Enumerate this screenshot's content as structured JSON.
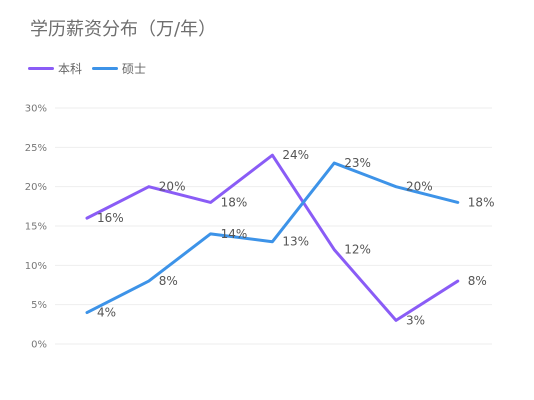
{
  "colors": {
    "undergraduate": "#8a5cf6",
    "master": "#3d93e8",
    "title_text": "#6e6e6e",
    "axis_text": "#777777",
    "label_text": "#555555",
    "grid": "#eeeeee"
  },
  "chart_data": {
    "type": "line",
    "title": "学历薪资分布（万/年）",
    "xlabel": "",
    "ylabel": "",
    "categories": [
      "",
      "",
      "",
      "",
      "",
      "",
      ""
    ],
    "ylim": [
      0,
      30
    ],
    "y_ticks": [
      0,
      5,
      10,
      15,
      20,
      25,
      30
    ],
    "y_tick_labels": [
      "0%",
      "5%",
      "10%",
      "15%",
      "20%",
      "25%",
      "30%"
    ],
    "grid": true,
    "legend_position": "top-left",
    "series": [
      {
        "name": "本科",
        "color": "#8a5cf6",
        "values": [
          16,
          20,
          18,
          24,
          12,
          3,
          8
        ],
        "labels": [
          "16%",
          "20%",
          "18%",
          "24%",
          "12%",
          "3%",
          "8%"
        ]
      },
      {
        "name": "硕士",
        "color": "#3d93e8",
        "values": [
          4,
          8,
          14,
          13,
          23,
          20,
          18
        ],
        "labels": [
          "4%",
          "8%",
          "14%",
          "13%",
          "23%",
          "20%",
          "18%"
        ]
      }
    ]
  }
}
